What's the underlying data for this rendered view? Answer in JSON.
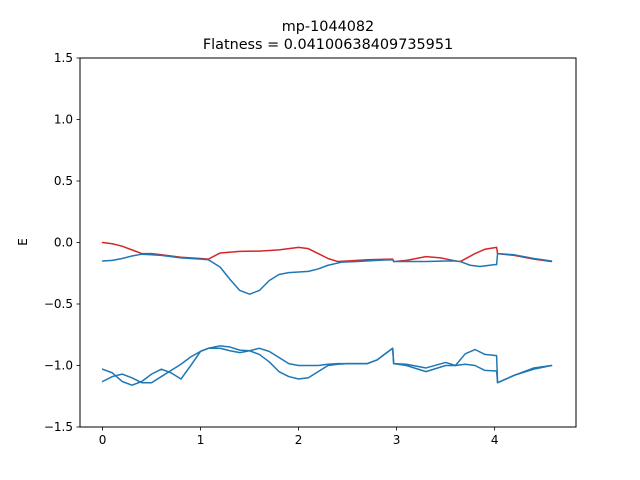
{
  "chart_data": {
    "type": "line",
    "title": "mp-1044082",
    "subtitle": "Flatness = 0.04100638409735951",
    "xlabel": "",
    "ylabel": "E",
    "xlim": [
      -0.23,
      4.83
    ],
    "ylim": [
      -1.5,
      1.5
    ],
    "grid": false,
    "legend": "none",
    "x_ticks": [
      0,
      1,
      2,
      3,
      4
    ],
    "x_tick_labels": [
      "0",
      "1",
      "2",
      "3",
      "4"
    ],
    "y_ticks": [
      1.5,
      1.0,
      0.5,
      0.0,
      -0.5,
      -1.0,
      -1.5
    ],
    "y_tick_labels": [
      "1.5",
      "1.0",
      "0.5",
      "0.0",
      "−0.5",
      "−1.0",
      "−1.5"
    ],
    "colors": {
      "highlight": "#d62728",
      "bands": "#1f77b4"
    },
    "series": [
      {
        "color": "#d62728",
        "x": [
          0.0,
          0.1,
          0.2,
          0.3,
          0.4,
          0.5,
          0.6,
          0.7,
          0.8,
          0.9,
          1.0,
          1.08,
          1.2,
          1.4,
          1.6,
          1.8,
          2.0,
          2.1,
          2.2,
          2.3,
          2.4,
          2.5,
          2.7,
          2.96,
          2.97,
          3.1,
          3.3,
          3.45,
          3.6,
          3.65,
          3.8,
          3.9,
          4.02,
          4.03,
          4.2,
          4.4,
          4.58
        ],
        "y": [
          0.0,
          -0.01,
          -0.03,
          -0.06,
          -0.09,
          -0.09,
          -0.1,
          -0.11,
          -0.12,
          -0.125,
          -0.13,
          -0.135,
          -0.085,
          -0.072,
          -0.07,
          -0.06,
          -0.04,
          -0.05,
          -0.09,
          -0.13,
          -0.155,
          -0.15,
          -0.14,
          -0.135,
          -0.155,
          -0.145,
          -0.115,
          -0.125,
          -0.15,
          -0.155,
          -0.09,
          -0.055,
          -0.04,
          -0.09,
          -0.105,
          -0.135,
          -0.155
        ]
      },
      {
        "color": "#1f77b4",
        "x": [
          0.0,
          0.1,
          0.2,
          0.3,
          0.4,
          0.5,
          0.6,
          0.7,
          0.8,
          0.9,
          1.0,
          1.08,
          1.2,
          1.3,
          1.4,
          1.5,
          1.6,
          1.7,
          1.8,
          1.9,
          2.0,
          2.1,
          2.2,
          2.3,
          2.44,
          2.6,
          2.8,
          2.96,
          2.97,
          3.1,
          3.3,
          3.5,
          3.6,
          3.65,
          3.75,
          3.85,
          4.0,
          4.02,
          4.03,
          4.2,
          4.4,
          4.58
        ],
        "y": [
          -0.15,
          -0.145,
          -0.13,
          -0.11,
          -0.095,
          -0.1,
          -0.105,
          -0.115,
          -0.125,
          -0.13,
          -0.135,
          -0.14,
          -0.2,
          -0.3,
          -0.39,
          -0.42,
          -0.39,
          -0.31,
          -0.26,
          -0.245,
          -0.24,
          -0.235,
          -0.215,
          -0.185,
          -0.16,
          -0.155,
          -0.145,
          -0.14,
          -0.155,
          -0.155,
          -0.155,
          -0.15,
          -0.15,
          -0.155,
          -0.185,
          -0.195,
          -0.18,
          -0.18,
          -0.09,
          -0.1,
          -0.13,
          -0.15
        ]
      },
      {
        "color": "#1f77b4",
        "x": [
          0.0,
          0.1,
          0.2,
          0.3,
          0.4,
          0.5,
          0.6,
          0.7,
          0.8,
          0.9,
          1.0,
          1.08,
          1.2,
          1.3,
          1.4,
          1.5,
          1.6,
          1.7,
          1.8,
          1.9,
          2.0,
          2.1,
          2.2,
          2.3,
          2.4,
          2.5,
          2.6,
          2.7,
          2.8,
          2.96,
          2.97,
          3.1,
          3.3,
          3.5,
          3.6,
          3.7,
          3.8,
          3.9,
          4.02,
          4.03,
          4.2,
          4.4,
          4.58
        ],
        "y": [
          -1.13,
          -1.09,
          -1.07,
          -1.1,
          -1.14,
          -1.14,
          -1.09,
          -1.04,
          -0.99,
          -0.93,
          -0.885,
          -0.86,
          -0.86,
          -0.88,
          -0.895,
          -0.88,
          -0.86,
          -0.885,
          -0.935,
          -0.985,
          -1.0,
          -1.0,
          -1.0,
          -0.99,
          -0.985,
          -0.985,
          -0.985,
          -0.985,
          -0.955,
          -0.86,
          -0.985,
          -0.99,
          -1.02,
          -0.975,
          -1.0,
          -0.905,
          -0.87,
          -0.91,
          -0.92,
          -1.14,
          -1.08,
          -1.02,
          -1.0
        ]
      },
      {
        "color": "#1f77b4",
        "x": [
          0.0,
          0.1,
          0.2,
          0.3,
          0.4,
          0.5,
          0.6,
          0.7,
          0.8,
          0.9,
          1.0,
          1.08,
          1.2,
          1.3,
          1.4,
          1.5,
          1.6,
          1.7,
          1.8,
          1.9,
          2.0,
          2.1,
          2.2,
          2.3,
          2.4,
          2.5,
          2.6,
          2.7,
          2.8,
          2.96,
          2.97,
          3.1,
          3.3,
          3.5,
          3.6,
          3.7,
          3.8,
          3.9,
          4.02,
          4.03,
          4.2,
          4.4,
          4.58
        ],
        "y": [
          -1.03,
          -1.06,
          -1.13,
          -1.16,
          -1.13,
          -1.07,
          -1.03,
          -1.06,
          -1.11,
          -1.0,
          -0.885,
          -0.86,
          -0.84,
          -0.85,
          -0.875,
          -0.88,
          -0.91,
          -0.97,
          -1.05,
          -1.09,
          -1.11,
          -1.1,
          -1.05,
          -1.0,
          -0.99,
          -0.985,
          -0.985,
          -0.985,
          -0.955,
          -0.86,
          -0.985,
          -1.0,
          -1.05,
          -1.0,
          -1.0,
          -0.99,
          -1.0,
          -1.04,
          -1.045,
          -1.14,
          -1.08,
          -1.03,
          -1.0
        ]
      }
    ]
  }
}
